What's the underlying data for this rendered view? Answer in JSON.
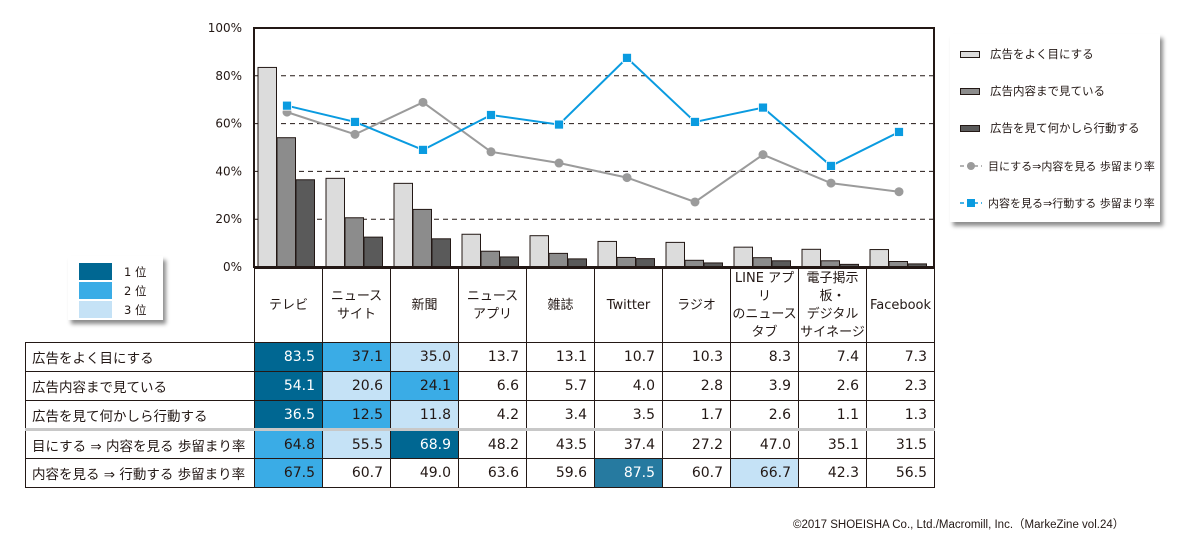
{
  "chart_data": {
    "type": "bar",
    "title": "",
    "xlabel": "",
    "ylabel": "",
    "ylim": [
      0,
      100
    ],
    "yticks": [
      "0%",
      "20%",
      "40%",
      "60%",
      "80%",
      "100%"
    ],
    "ytick_values": [
      0,
      20,
      40,
      60,
      80,
      100
    ],
    "grid": "horizontal dashed at 20/40/60/80",
    "categories": [
      "テレビ",
      "ニュースサイト",
      "新聞",
      "ニュースアプリ",
      "雑誌",
      "Twitter",
      "ラジオ",
      "LINE アプリのニュースタブ",
      "電子掲示板・デジタルサイネージ",
      "Facebook"
    ],
    "series": [
      {
        "name": "広告をよく目にする",
        "kind": "bar",
        "color": "#dcdcdc",
        "values": [
          83.5,
          37.1,
          35.0,
          13.7,
          13.1,
          10.7,
          10.3,
          8.3,
          7.4,
          7.3
        ]
      },
      {
        "name": "広告内容まで見ている",
        "kind": "bar",
        "color": "#8c8c8c",
        "values": [
          54.1,
          20.6,
          24.1,
          6.6,
          5.7,
          4.0,
          2.8,
          3.9,
          2.6,
          2.3
        ]
      },
      {
        "name": "広告を見て何かしら行動する",
        "kind": "bar",
        "color": "#5a5a5a",
        "values": [
          36.5,
          12.5,
          11.8,
          4.2,
          3.4,
          3.5,
          1.7,
          2.6,
          1.1,
          1.3
        ]
      },
      {
        "name": "目にする⇒内容を見る 歩留まり率",
        "kind": "line",
        "marker": "circle",
        "color": "#9b9b9b",
        "values": [
          64.8,
          55.5,
          68.9,
          48.2,
          43.5,
          37.4,
          27.2,
          47.0,
          35.1,
          31.5
        ]
      },
      {
        "name": "内容を見る⇒行動する 歩留まり率",
        "kind": "line",
        "marker": "square",
        "color": "#0a9be0",
        "values": [
          67.5,
          60.7,
          49.0,
          63.6,
          59.6,
          87.5,
          60.7,
          66.7,
          42.3,
          56.5
        ]
      }
    ],
    "legend_placement": "right",
    "legend": [
      {
        "label": "広告をよく目にする",
        "type": "bar"
      },
      {
        "label": "広告内容まで見ている",
        "type": "bar"
      },
      {
        "label": "広告を見て何かしら行動する",
        "type": "bar"
      },
      {
        "label": "目にする⇒内容を見る 歩留まり率",
        "type": "line-circle"
      },
      {
        "label": "内容を見る⇒行動する 歩留まり率",
        "type": "line-square"
      }
    ]
  },
  "rank_legend": {
    "items": [
      {
        "label": "1 位",
        "color": "#006792"
      },
      {
        "label": "2 位",
        "color": "#3aace6"
      },
      {
        "label": "3 位",
        "color": "#c5e2f6"
      }
    ]
  },
  "table": {
    "headers": [
      [
        "テレビ"
      ],
      [
        "ニュース",
        "サイト"
      ],
      [
        "新聞"
      ],
      [
        "ニュース",
        "アプリ"
      ],
      [
        "雑誌"
      ],
      [
        "Twitter"
      ],
      [
        "ラジオ"
      ],
      [
        "LINE アプリ",
        "のニュース",
        "タブ"
      ],
      [
        "電子掲示板・",
        "デジタル",
        "サイネージ"
      ],
      [
        "Facebook"
      ]
    ],
    "rows": [
      {
        "label": "広告をよく目にする",
        "values": [
          "83.5",
          "37.1",
          "35.0",
          "13.7",
          "13.1",
          "10.7",
          "10.3",
          "8.3",
          "7.4",
          "7.3"
        ],
        "ranks": [
          1,
          2,
          3,
          0,
          0,
          0,
          0,
          0,
          0,
          0
        ]
      },
      {
        "label": "広告内容まで見ている",
        "values": [
          "54.1",
          "20.6",
          "24.1",
          "6.6",
          "5.7",
          "4.0",
          "2.8",
          "3.9",
          "2.6",
          "2.3"
        ],
        "ranks": [
          1,
          3,
          2,
          0,
          0,
          0,
          0,
          0,
          0,
          0
        ]
      },
      {
        "label": "広告を見て何かしら行動する",
        "values": [
          "36.5",
          "12.5",
          "11.8",
          "4.2",
          "3.4",
          "3.5",
          "1.7",
          "2.6",
          "1.1",
          "1.3"
        ],
        "ranks": [
          1,
          2,
          3,
          0,
          0,
          0,
          0,
          0,
          0,
          0
        ]
      },
      {
        "label": "目にする ⇒ 内容を見る 歩留まり率",
        "values": [
          "64.8",
          "55.5",
          "68.9",
          "48.2",
          "43.5",
          "37.4",
          "27.2",
          "47.0",
          "35.1",
          "31.5"
        ],
        "ranks": [
          2,
          3,
          1,
          0,
          0,
          0,
          0,
          0,
          0,
          0
        ]
      },
      {
        "label": "内容を見る ⇒ 行動する 歩留まり率",
        "values": [
          "67.5",
          "60.7",
          "49.0",
          "63.6",
          "59.6",
          "87.5",
          "60.7",
          "66.7",
          "42.3",
          "56.5"
        ],
        "ranks": [
          2,
          0,
          0,
          0,
          0,
          1,
          0,
          3,
          0,
          0
        ]
      }
    ]
  },
  "footer": {
    "copyright": "©2017 SHOEISHA Co., Ltd./Macromill, Inc.（MarkeZine vol.24）"
  }
}
